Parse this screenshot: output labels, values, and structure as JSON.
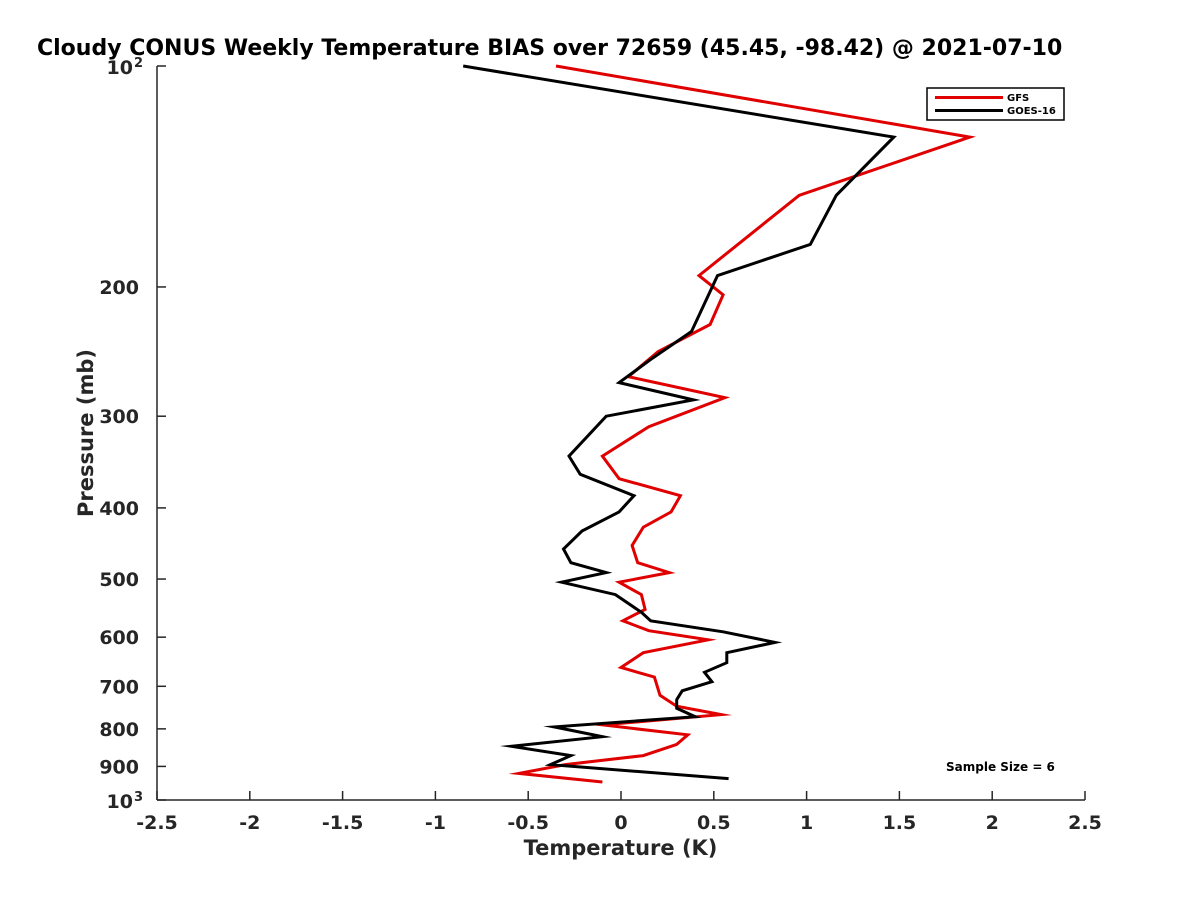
{
  "chart_data": {
    "type": "line",
    "title": "Cloudy CONUS Weekly Temperature BIAS over 72659 (45.45, -98.42) @ 2021-07-10",
    "xlabel": "Temperature (K)",
    "ylabel": "Pressure (mb)",
    "xlim": [
      -2.5,
      2.5
    ],
    "ylim": [
      1000,
      100
    ],
    "yscale": "log",
    "y_reversed": true,
    "grid": false,
    "legend_position": "top-right",
    "x_ticks": [
      "-2.5",
      "-2",
      "-1.5",
      "-1",
      "-0.5",
      "0",
      "0.5",
      "1",
      "1.5",
      "2",
      "2.5"
    ],
    "y_ticks": [
      {
        "value": 100,
        "base": "10",
        "exp": "2"
      },
      {
        "value": 200,
        "base": "200",
        "exp": ""
      },
      {
        "value": 300,
        "base": "300",
        "exp": ""
      },
      {
        "value": 400,
        "base": "400",
        "exp": ""
      },
      {
        "value": 500,
        "base": "500",
        "exp": ""
      },
      {
        "value": 600,
        "base": "600",
        "exp": ""
      },
      {
        "value": 700,
        "base": "700",
        "exp": ""
      },
      {
        "value": 800,
        "base": "800",
        "exp": ""
      },
      {
        "value": 900,
        "base": "900",
        "exp": ""
      },
      {
        "value": 1000,
        "base": "10",
        "exp": "3"
      }
    ],
    "series": [
      {
        "name": "GFS",
        "color": "#e00000",
        "points": [
          [
            -0.35,
            100
          ],
          [
            1.88,
            125
          ],
          [
            0.96,
            150
          ],
          [
            0.63,
            175
          ],
          [
            0.42,
            193
          ],
          [
            0.55,
            205
          ],
          [
            0.48,
            225
          ],
          [
            0.2,
            245
          ],
          [
            0.04,
            265
          ],
          [
            0.56,
            283
          ],
          [
            0.15,
            310
          ],
          [
            -0.1,
            340
          ],
          [
            -0.01,
            365
          ],
          [
            0.32,
            385
          ],
          [
            0.27,
            405
          ],
          [
            0.12,
            425
          ],
          [
            0.06,
            450
          ],
          [
            0.09,
            475
          ],
          [
            0.26,
            490
          ],
          [
            -0.01,
            505
          ],
          [
            0.11,
            525
          ],
          [
            0.13,
            550
          ],
          [
            0.01,
            570
          ],
          [
            0.15,
            588
          ],
          [
            0.47,
            605
          ],
          [
            0.12,
            630
          ],
          [
            0.0,
            660
          ],
          [
            0.18,
            680
          ],
          [
            0.21,
            720
          ],
          [
            0.3,
            745
          ],
          [
            0.54,
            765
          ],
          [
            -0.1,
            790
          ],
          [
            0.36,
            815
          ],
          [
            0.3,
            840
          ],
          [
            0.12,
            870
          ],
          [
            -0.3,
            895
          ],
          [
            -0.55,
            920
          ],
          [
            -0.1,
            945
          ]
        ]
      },
      {
        "name": "GOES-16",
        "color": "#000000",
        "points": [
          [
            -0.85,
            100
          ],
          [
            1.47,
            125
          ],
          [
            1.16,
            150
          ],
          [
            1.02,
            175
          ],
          [
            0.52,
            193
          ],
          [
            0.38,
            230
          ],
          [
            0.17,
            250
          ],
          [
            -0.01,
            270
          ],
          [
            0.39,
            285
          ],
          [
            -0.08,
            300
          ],
          [
            -0.28,
            340
          ],
          [
            -0.22,
            360
          ],
          [
            0.07,
            385
          ],
          [
            -0.01,
            405
          ],
          [
            -0.21,
            430
          ],
          [
            -0.31,
            455
          ],
          [
            -0.27,
            475
          ],
          [
            -0.08,
            490
          ],
          [
            -0.32,
            505
          ],
          [
            -0.03,
            525
          ],
          [
            0.11,
            555
          ],
          [
            0.16,
            570
          ],
          [
            0.55,
            590
          ],
          [
            0.83,
            610
          ],
          [
            0.57,
            630
          ],
          [
            0.57,
            650
          ],
          [
            0.45,
            670
          ],
          [
            0.49,
            690
          ],
          [
            0.33,
            710
          ],
          [
            0.3,
            730
          ],
          [
            0.3,
            750
          ],
          [
            0.4,
            770
          ],
          [
            -0.36,
            795
          ],
          [
            -0.1,
            820
          ],
          [
            -0.59,
            845
          ],
          [
            -0.27,
            870
          ],
          [
            -0.38,
            895
          ],
          [
            0.58,
            935
          ]
        ]
      }
    ],
    "annotations": [
      "Sample Size = 6"
    ]
  }
}
